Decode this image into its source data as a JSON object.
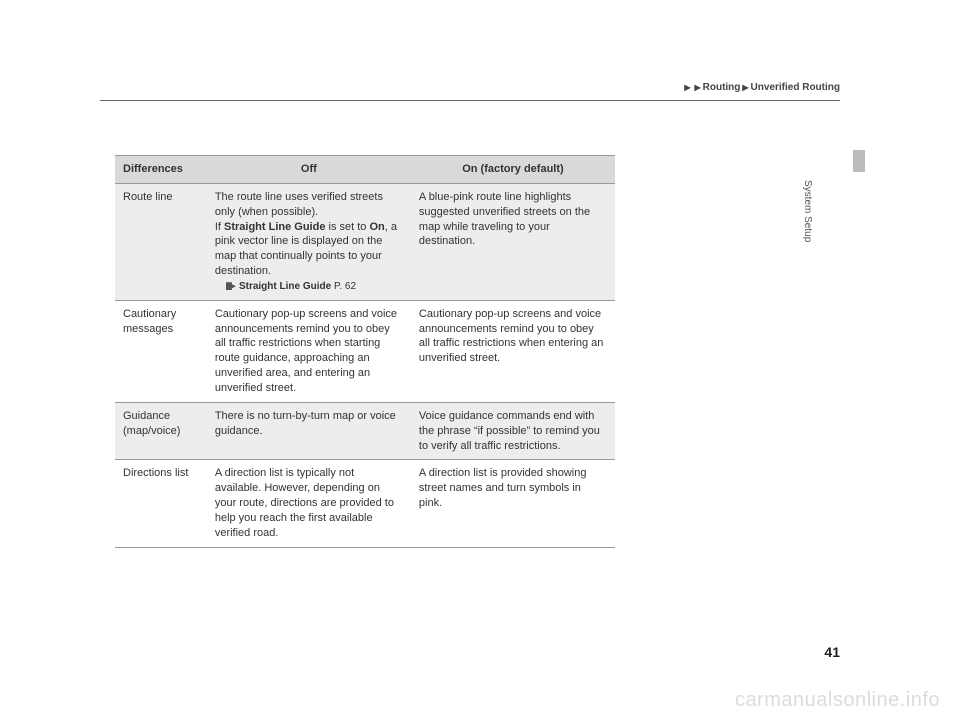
{
  "breadcrumb": {
    "seg1": "Routing",
    "seg2": "Unverified Routing"
  },
  "sideTab": "System Setup",
  "pageNumber": "41",
  "watermark": "carmanualsonline.info",
  "table": {
    "headers": {
      "c1": "Differences",
      "c2": "Off",
      "c3_prefix": "On",
      "c3_suffix": " (factory default)"
    },
    "rows": [
      {
        "c1": "Route line",
        "c2_p1a": "The route line uses verified streets only (when possible).",
        "c2_p1b_pre": "If ",
        "c2_p1b_bold1": "Straight Line Guide",
        "c2_p1b_mid": " is set to ",
        "c2_p1b_bold2": "On",
        "c2_p1b_post": ", a pink vector line is displayed on the map that continually points to your destination.",
        "c2_xref_bold": "Straight Line Guide",
        "c2_xref_page": " P. 62",
        "c3": "A blue-pink route line highlights suggested unverified streets on the map while traveling to your destination."
      },
      {
        "c1": "Cautionary messages",
        "c2": "Cautionary pop-up screens and voice announcements remind you to obey all traffic restrictions when starting route guidance, approaching an unverified area, and entering an unverified street.",
        "c3": "Cautionary pop-up screens and voice announcements remind you to obey all traffic restrictions when entering an unverified street."
      },
      {
        "c1": "Guidance (map/voice)",
        "c2": "There is no turn-by-turn map or voice guidance.",
        "c3": "Voice guidance commands end with the phrase “if possible” to remind you to verify all traffic restrictions."
      },
      {
        "c1": "Directions list",
        "c2": "A direction list is typically not available. However, depending on your route, directions are provided to help you reach the first available verified road.",
        "c3": "A direction list is provided showing street names and turn symbols in pink."
      }
    ]
  }
}
